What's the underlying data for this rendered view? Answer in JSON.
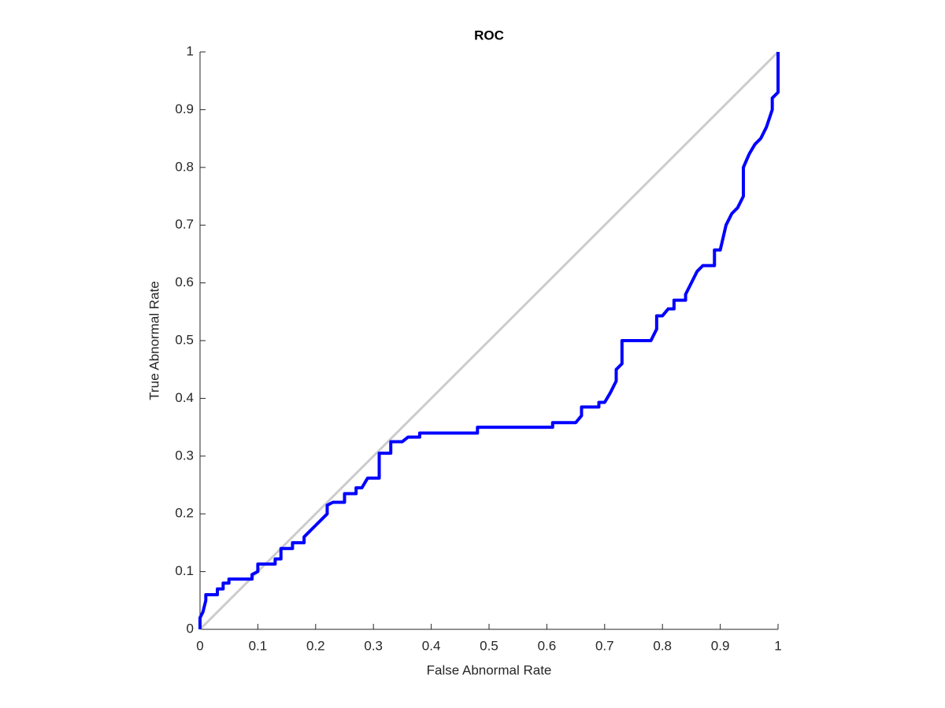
{
  "chart_data": {
    "type": "line",
    "title": "ROC",
    "xlabel": "False Abnormal Rate",
    "ylabel": "True Abnormal Rate",
    "xlim": [
      0,
      1
    ],
    "ylim": [
      0,
      1
    ],
    "xticks": [
      0,
      0.1,
      0.2,
      0.3,
      0.4,
      0.5,
      0.6,
      0.7,
      0.8,
      0.9,
      1
    ],
    "yticks": [
      0,
      0.1,
      0.2,
      0.3,
      0.4,
      0.5,
      0.6,
      0.7,
      0.8,
      0.9,
      1
    ],
    "grid": false,
    "series": [
      {
        "color": "#cccccc",
        "x": [
          0,
          1
        ],
        "values": [
          0,
          1
        ]
      },
      {
        "color": "#0000ff",
        "x": [
          0,
          0,
          0.005,
          0.01,
          0.01,
          0.03,
          0.03,
          0.04,
          0.04,
          0.05,
          0.05,
          0.09,
          0.09,
          0.1,
          0.1,
          0.13,
          0.13,
          0.14,
          0.14,
          0.16,
          0.16,
          0.18,
          0.18,
          0.19,
          0.2,
          0.21,
          0.22,
          0.22,
          0.23,
          0.25,
          0.25,
          0.27,
          0.27,
          0.28,
          0.29,
          0.31,
          0.31,
          0.33,
          0.33,
          0.35,
          0.36,
          0.38,
          0.38,
          0.48,
          0.48,
          0.61,
          0.61,
          0.65,
          0.66,
          0.66,
          0.69,
          0.69,
          0.7,
          0.71,
          0.72,
          0.72,
          0.73,
          0.73,
          0.78,
          0.79,
          0.79,
          0.8,
          0.81,
          0.82,
          0.82,
          0.84,
          0.84,
          0.85,
          0.86,
          0.87,
          0.89,
          0.89,
          0.9,
          0.91,
          0.92,
          0.93,
          0.94,
          0.94,
          0.95,
          0.96,
          0.97,
          0.98,
          0.99,
          0.99,
          1,
          1
        ],
        "values": [
          0,
          0.02,
          0.03,
          0.05,
          0.06,
          0.06,
          0.07,
          0.07,
          0.08,
          0.08,
          0.087,
          0.087,
          0.095,
          0.1,
          0.113,
          0.113,
          0.122,
          0.122,
          0.14,
          0.14,
          0.15,
          0.15,
          0.16,
          0.17,
          0.18,
          0.19,
          0.2,
          0.215,
          0.22,
          0.22,
          0.235,
          0.235,
          0.245,
          0.245,
          0.262,
          0.262,
          0.305,
          0.305,
          0.325,
          0.325,
          0.333,
          0.333,
          0.34,
          0.34,
          0.35,
          0.35,
          0.358,
          0.358,
          0.37,
          0.385,
          0.385,
          0.393,
          0.393,
          0.41,
          0.43,
          0.45,
          0.46,
          0.5,
          0.5,
          0.52,
          0.543,
          0.543,
          0.555,
          0.555,
          0.57,
          0.57,
          0.58,
          0.6,
          0.62,
          0.63,
          0.63,
          0.657,
          0.657,
          0.7,
          0.72,
          0.73,
          0.75,
          0.8,
          0.823,
          0.84,
          0.85,
          0.87,
          0.9,
          0.92,
          0.93,
          1
        ]
      }
    ]
  }
}
